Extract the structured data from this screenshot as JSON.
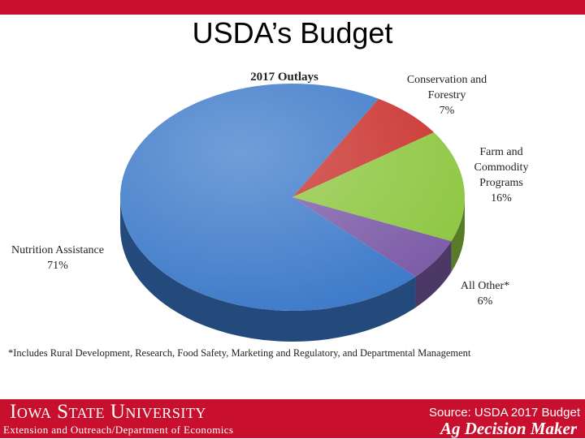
{
  "slide": {
    "title": "USDA’s Budget",
    "footnote": "*Includes Rural Development, Research, Food Safety, Marketing and Regulatory, and Departmental Management"
  },
  "footer": {
    "university": "Iowa State University",
    "department": "Extension and Outreach/Department of Economics",
    "source": "Source: USDA 2017 Budget",
    "brand": "Ag Decision Maker"
  },
  "chart_data": {
    "type": "pie",
    "title": "2017 Outlays",
    "slices": [
      {
        "label_lines": [
          "Conservation and",
          "Forestry"
        ],
        "value_label": "7%",
        "value": 7,
        "color": "#c9302c"
      },
      {
        "label_lines": [
          "Farm and",
          "Commodity",
          "Programs"
        ],
        "value_label": "16%",
        "value": 16,
        "color": "#8dc63f"
      },
      {
        "label_lines": [
          "All Other*"
        ],
        "value_label": "6%",
        "value": 6,
        "color": "#7b5aa6"
      },
      {
        "label_lines": [
          "Nutrition Assistance"
        ],
        "value_label": "71%",
        "value": 71,
        "color": "#3a78c8"
      }
    ],
    "style": "3d"
  }
}
